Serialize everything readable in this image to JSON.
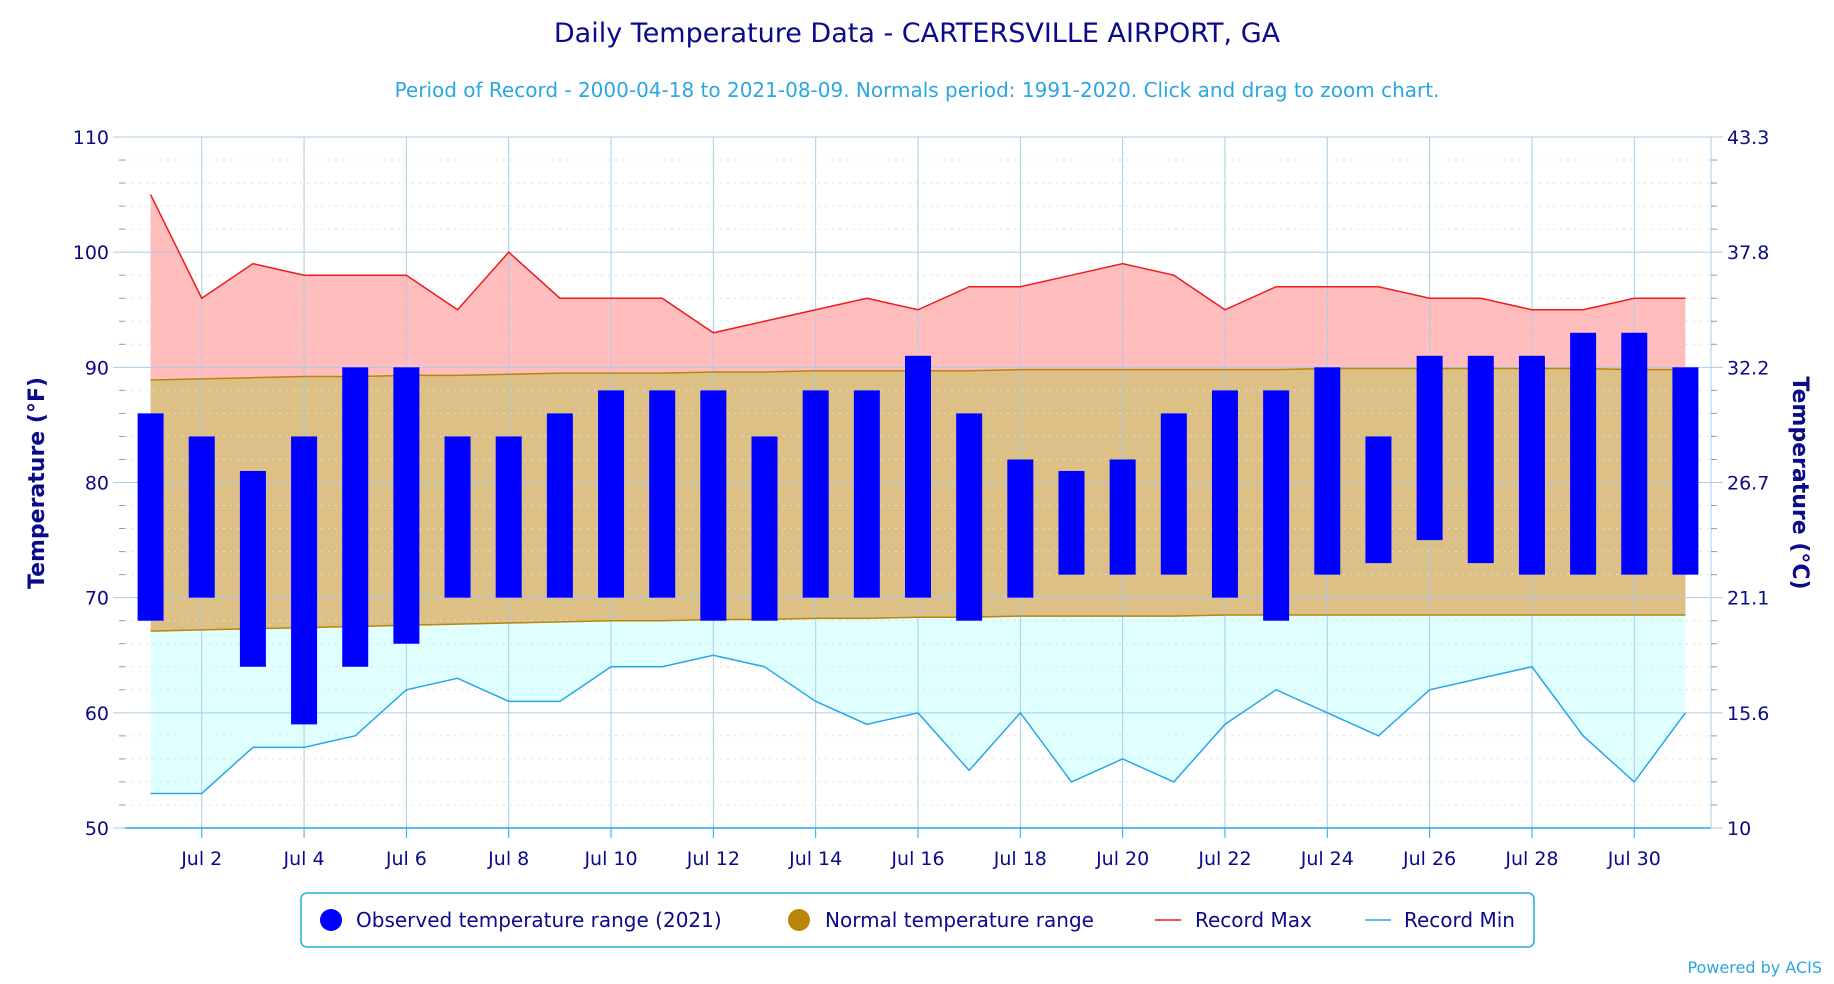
{
  "chart_data": {
    "type": "bar",
    "title": "Daily Temperature Data - CARTERSVILLE AIRPORT, GA",
    "subtitle": "Period of Record - 2000-04-18 to 2021-08-09. Normals period: 1991-2020. Click and drag to zoom chart.",
    "ylabel": "Temperature (°F)",
    "ylabel_right": "Temperature (°C)",
    "ylim": [
      50,
      110
    ],
    "yticks": [
      50,
      60,
      70,
      80,
      90,
      100,
      110
    ],
    "yticks_right": [
      "10",
      "15.6",
      "21.1",
      "26.7",
      "32.2",
      "37.8",
      "43.3"
    ],
    "x": [
      1,
      2,
      3,
      4,
      5,
      6,
      7,
      8,
      9,
      10,
      11,
      12,
      13,
      14,
      15,
      16,
      17,
      18,
      19,
      20,
      21,
      22,
      23,
      24,
      25,
      26,
      27,
      28,
      29,
      30,
      31
    ],
    "xlim": [
      0.5,
      31.5
    ],
    "xticks": [
      {
        "x": 2,
        "label": "Jul 2"
      },
      {
        "x": 4,
        "label": "Jul 4"
      },
      {
        "x": 6,
        "label": "Jul 6"
      },
      {
        "x": 8,
        "label": "Jul 8"
      },
      {
        "x": 10,
        "label": "Jul 10"
      },
      {
        "x": 12,
        "label": "Jul 12"
      },
      {
        "x": 14,
        "label": "Jul 14"
      },
      {
        "x": 16,
        "label": "Jul 16"
      },
      {
        "x": 18,
        "label": "Jul 18"
      },
      {
        "x": 20,
        "label": "Jul 20"
      },
      {
        "x": 22,
        "label": "Jul 22"
      },
      {
        "x": 24,
        "label": "Jul 24"
      },
      {
        "x": 26,
        "label": "Jul 26"
      },
      {
        "x": 28,
        "label": "Jul 28"
      },
      {
        "x": 30,
        "label": "Jul 30"
      }
    ],
    "grid": true,
    "legend_position": "bottom",
    "series": [
      {
        "name": "Observed temperature range (2021)",
        "low": [
          68,
          70,
          64,
          59,
          64,
          66,
          70,
          70,
          70,
          70,
          70,
          68,
          68,
          70,
          70,
          70,
          68,
          70,
          72,
          72,
          72,
          70,
          68,
          72,
          73,
          75,
          73,
          72,
          72,
          72,
          72
        ],
        "high": [
          86,
          84,
          81,
          84,
          90,
          90,
          84,
          84,
          86,
          88,
          88,
          88,
          84,
          88,
          88,
          91,
          86,
          82,
          81,
          82,
          86,
          88,
          88,
          90,
          84,
          91,
          91,
          91,
          93,
          93,
          90
        ]
      },
      {
        "name": "Normal temperature range",
        "low": [
          67.1,
          67.2,
          67.3,
          67.4,
          67.5,
          67.6,
          67.7,
          67.8,
          67.9,
          68.0,
          68.0,
          68.1,
          68.1,
          68.2,
          68.2,
          68.3,
          68.3,
          68.4,
          68.4,
          68.4,
          68.4,
          68.5,
          68.5,
          68.5,
          68.5,
          68.5,
          68.5,
          68.5,
          68.5,
          68.5,
          68.5
        ],
        "high": [
          88.9,
          89.0,
          89.1,
          89.2,
          89.2,
          89.3,
          89.3,
          89.4,
          89.5,
          89.5,
          89.5,
          89.6,
          89.6,
          89.7,
          89.7,
          89.7,
          89.7,
          89.8,
          89.8,
          89.8,
          89.8,
          89.8,
          89.8,
          89.9,
          89.9,
          89.9,
          89.9,
          89.9,
          89.9,
          89.8,
          89.8
        ]
      },
      {
        "name": "Record Max",
        "values": [
          105,
          96,
          99,
          98,
          98,
          98,
          95,
          100,
          96,
          96,
          96,
          93,
          94,
          95,
          96,
          95,
          97,
          97,
          98,
          99,
          98,
          95,
          97,
          97,
          97,
          96,
          96,
          95,
          95,
          96,
          96
        ]
      },
      {
        "name": "Record Min",
        "values": [
          53,
          53,
          57,
          57,
          58,
          62,
          63,
          61,
          61,
          64,
          64,
          65,
          64,
          61,
          59,
          60,
          55,
          60,
          54,
          56,
          54,
          59,
          62,
          60,
          58,
          62,
          63,
          64,
          58,
          54,
          60
        ]
      }
    ],
    "colors": {
      "observed": "#0000ff",
      "normal_fill": "#dcc086",
      "normal_line": "#b8860b",
      "normal_legend": "#b8860b",
      "record_max_line": "#ee1c1c",
      "record_max_fill": "#ffbdbd",
      "record_min_line": "#26a8e8",
      "record_min_fill": "#e0ffff",
      "grid_major": "#a8cde6",
      "grid_minor": "#dddddd",
      "text": "#0a0a8a",
      "accent": "#2aa7e0"
    }
  },
  "credit": "Powered by ACIS"
}
